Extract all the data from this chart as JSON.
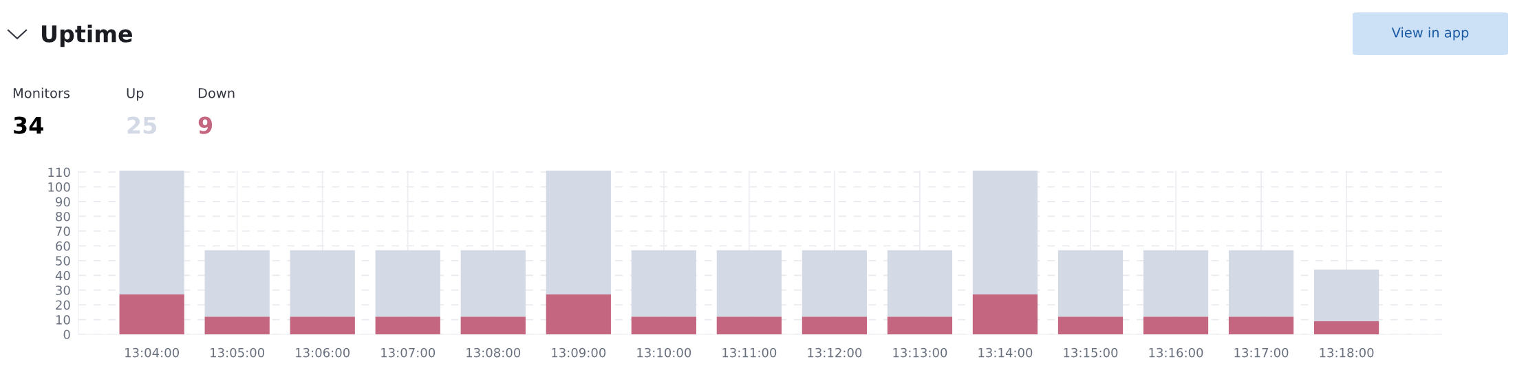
{
  "chart_data": [
    {
      "type": "other",
      "title": "Uptime",
      "annotations": [
        "View in app"
      ],
      "categories": [
        "Monitors",
        "Up",
        "Down"
      ],
      "values": [
        34,
        25,
        9
      ],
      "data_labels": true,
      "colors": [
        "#000000",
        "#d3dae6",
        "#c4667f"
      ]
    },
    {
      "type": "bar",
      "stacked": true,
      "grid": true,
      "categories": [
        "13:04:00",
        "13:05:00",
        "13:06:00",
        "13:07:00",
        "13:08:00",
        "13:09:00",
        "13:10:00",
        "13:11:00",
        "13:12:00",
        "13:13:00",
        "13:14:00",
        "13:15:00",
        "13:16:00",
        "13:17:00",
        "13:18:00"
      ],
      "series": [
        {
          "color": "#c4667f",
          "values": [
            27,
            12,
            12,
            12,
            12,
            27,
            12,
            12,
            12,
            12,
            27,
            12,
            12,
            12,
            9
          ]
        },
        {
          "color": "#d3dae6",
          "values": [
            84,
            45,
            45,
            45,
            45,
            84,
            45,
            45,
            45,
            45,
            84,
            45,
            45,
            45,
            35
          ]
        }
      ],
      "ylim": [
        0,
        111
      ],
      "yticks": [
        0,
        10,
        20,
        30,
        40,
        50,
        60,
        70,
        80,
        90,
        100,
        110
      ]
    }
  ]
}
